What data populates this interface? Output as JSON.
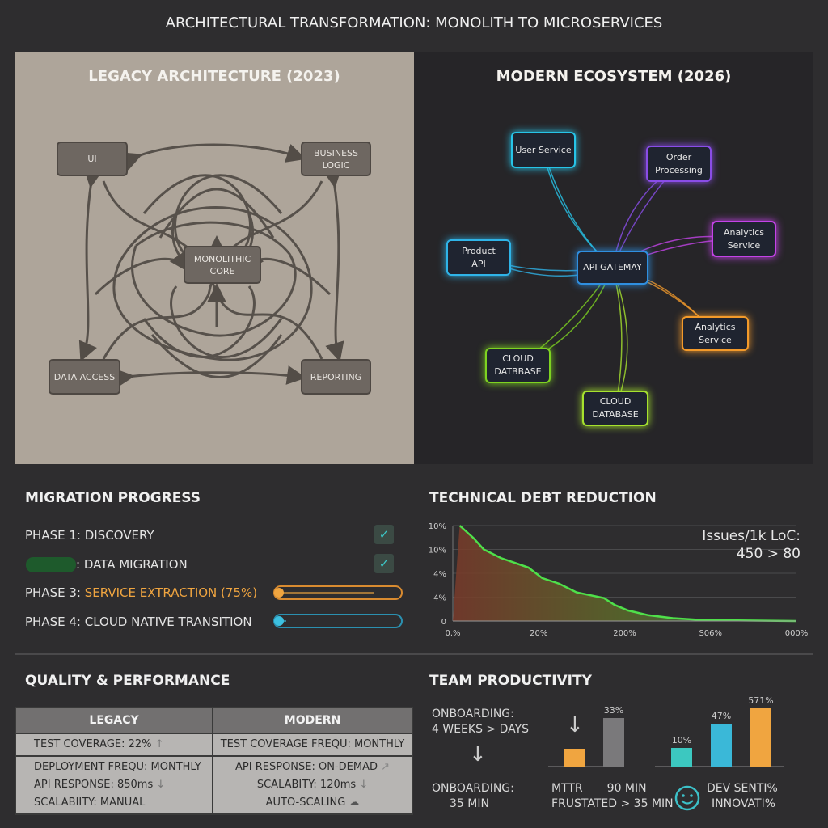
{
  "title": "ARCHITECTURAL TRANSFORMATION: MONOLITH TO MICROSERVICES",
  "legacy": {
    "title": "LEGACY ARCHITECTURE (2023)",
    "boxes": {
      "ui": "UI",
      "business": "BUSINESS LOGIC",
      "core": "MONOLITHIC CORE",
      "data": "DATA ACCESS",
      "reporting": "REPORTING"
    }
  },
  "modern": {
    "title": "MODERN ECOSYSTEM (2026)",
    "nodes": {
      "user": "User Service",
      "order": "Order Processing",
      "analytics1": "Analytics Service",
      "product": "Product API",
      "gateway": "API GATEMAY",
      "analytics2": "Analytics Service",
      "db1": "CLOUD DATBBASE",
      "db2": "CLOUD DATABASE"
    },
    "colors": {
      "user": "#27c4e8",
      "order": "#8a4de8",
      "analytics1": "#c443e8",
      "product": "#2fb4e8",
      "gateway": "#2f8fe0",
      "analytics2": "#f39a2a",
      "db1": "#7ed321",
      "db2": "#a6e22e"
    }
  },
  "migration": {
    "title": "MIGRATION PROGRESS",
    "phases": [
      {
        "label": "PHASE 1: DISCOVERY",
        "status": "complete"
      },
      {
        "label": ": DATA MIGRATION",
        "status": "complete"
      },
      {
        "prefix": "PHASE 3: ",
        "label": "SERVICE EXTRACTION (75%)",
        "progress": 75,
        "color": "#f0a540"
      },
      {
        "label": "PHASE 4: CLOUD NATIVE TRANSITION",
        "progress": 5,
        "color": "#3cc0e0"
      }
    ]
  },
  "chart_data": {
    "type": "area",
    "title": "TECHNICAL DEBT REDUCTION",
    "annotation": [
      "Issues/1k LoC:",
      "450 > 80"
    ],
    "y_tick_labels": [
      "0",
      "4%",
      "4%",
      "10%",
      "10%"
    ],
    "x_tick_labels": [
      "0.%",
      "20%",
      "200%",
      "S06%",
      "000%"
    ],
    "xlim": [
      0,
      100
    ],
    "ylim": [
      0,
      100
    ],
    "grid": true,
    "x": [
      2,
      6,
      9,
      14,
      22,
      26,
      31,
      36,
      44,
      47,
      51,
      57,
      64,
      73,
      100
    ],
    "y": [
      100,
      87,
      75,
      66,
      56,
      45,
      39,
      30,
      24,
      17,
      11,
      6,
      3,
      1,
      0
    ]
  },
  "quality": {
    "title": "QUALITY & PERFORMANCE",
    "headers": [
      "LEGACY",
      "MODERN"
    ],
    "row1": [
      "TEST COVERAGE: 22%",
      "TEST COVERAGE FREQU: MONTHLY"
    ],
    "legacy": [
      "DEPLOYMENT FREQU: MONTHLY",
      "API RESPONSE: 850ms",
      "SCALABIITY: MANUAL"
    ],
    "modern": [
      "API RESPONSE: ON-DEMAD",
      "SCALABITY: 120ms",
      "AUTO-SCALING"
    ]
  },
  "team": {
    "title": "TEAM PRODUCTIVITY",
    "onboard_top": [
      "ONBOARDING:",
      "4 WEEKS > DAYS"
    ],
    "onboard_bottom": [
      "ONBOARDING:",
      "35 MIN"
    ],
    "mttr": {
      "labels": [
        "MTTR",
        "90 MIN",
        "FRUSTATED > 35 MIN"
      ],
      "bars": [
        {
          "value": null,
          "label": "",
          "color": "#f0a540"
        },
        {
          "value": 33,
          "label": "33%",
          "color": "#7a797b"
        }
      ]
    },
    "sentiment": {
      "labels": [
        "DEV SENTI%",
        "INNOVATI%"
      ],
      "bars": [
        {
          "value": 10,
          "label": "10%",
          "color": "#3cc8c0"
        },
        {
          "value": 47,
          "label": "47%",
          "color": "#3ab8d8"
        },
        {
          "value": 571,
          "label": "571%",
          "color": "#f0a540"
        }
      ]
    }
  }
}
